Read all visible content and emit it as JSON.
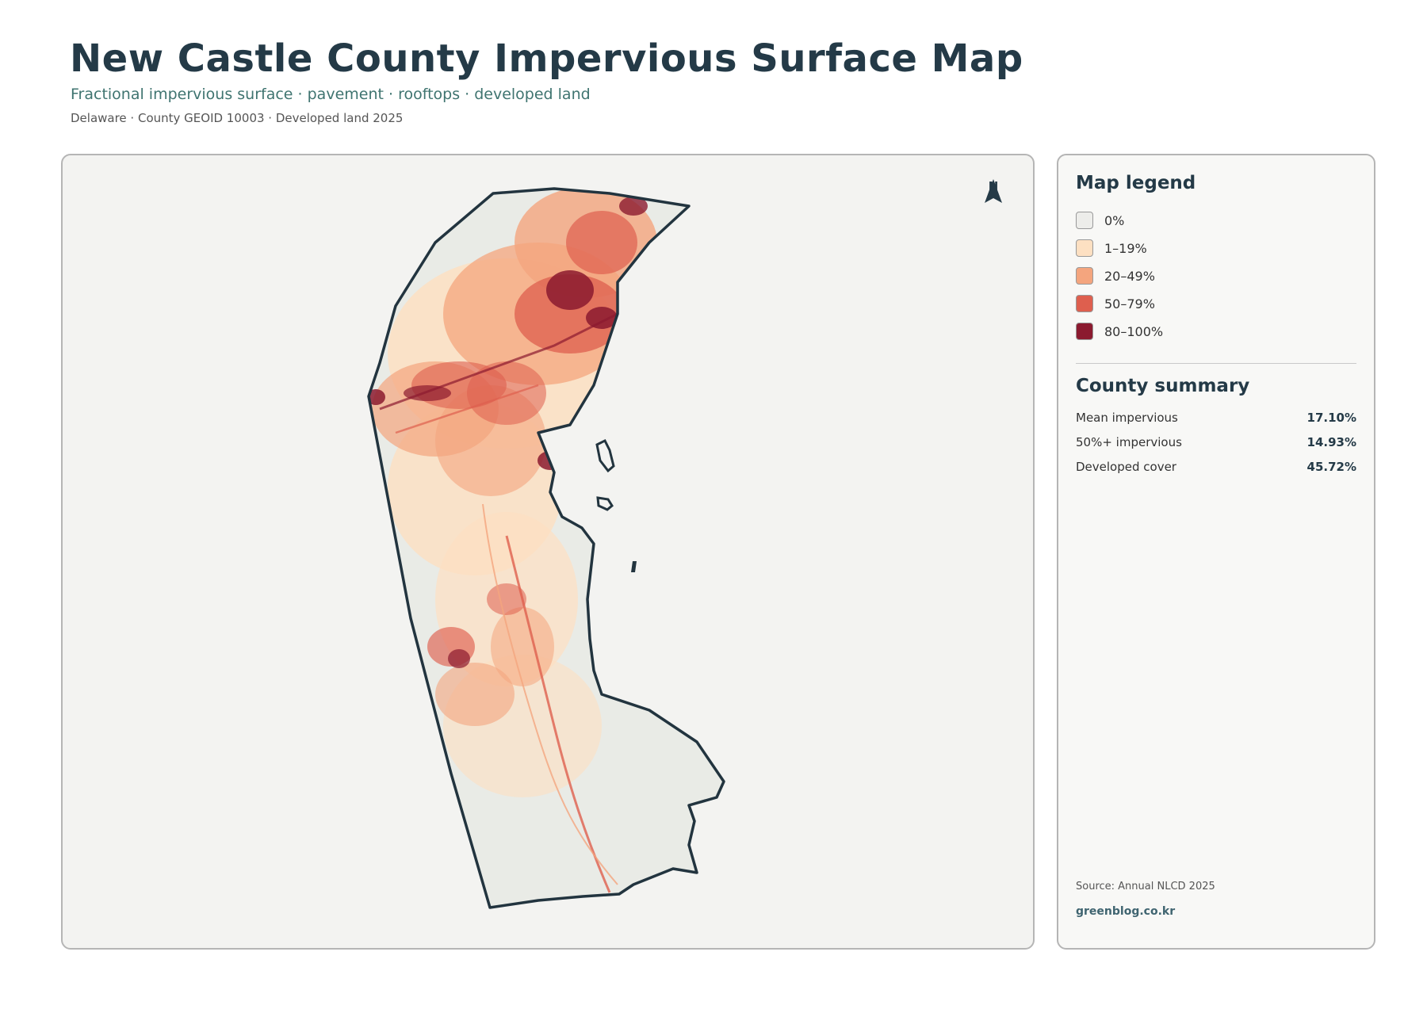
{
  "header": {
    "title": "New Castle County Impervious Surface Map",
    "subtitle": "Fractional impervious surface · pavement · rooftops · developed land",
    "meta": "Delaware · County GEOID 10003 · Developed land 2025"
  },
  "map": {
    "north_label": "N",
    "boundary_color": "#22343f",
    "land_color": "#e9ebe6"
  },
  "legend": {
    "title": "Map legend",
    "items": [
      {
        "label": "0%",
        "color": "#ededea"
      },
      {
        "label": "1–19%",
        "color": "#fde0c2"
      },
      {
        "label": "20–49%",
        "color": "#f4a57e"
      },
      {
        "label": "50–79%",
        "color": "#de5f4e"
      },
      {
        "label": "80–100%",
        "color": "#8b1a2f"
      }
    ]
  },
  "summary": {
    "title": "County summary",
    "rows": [
      {
        "label": "Mean impervious",
        "value": "17.10%"
      },
      {
        "label": "50%+ impervious",
        "value": "14.93%"
      },
      {
        "label": "Developed cover",
        "value": "45.72%"
      }
    ]
  },
  "footer": {
    "source": "Source: Annual NLCD 2025",
    "site": "greenblog.co.kr"
  }
}
